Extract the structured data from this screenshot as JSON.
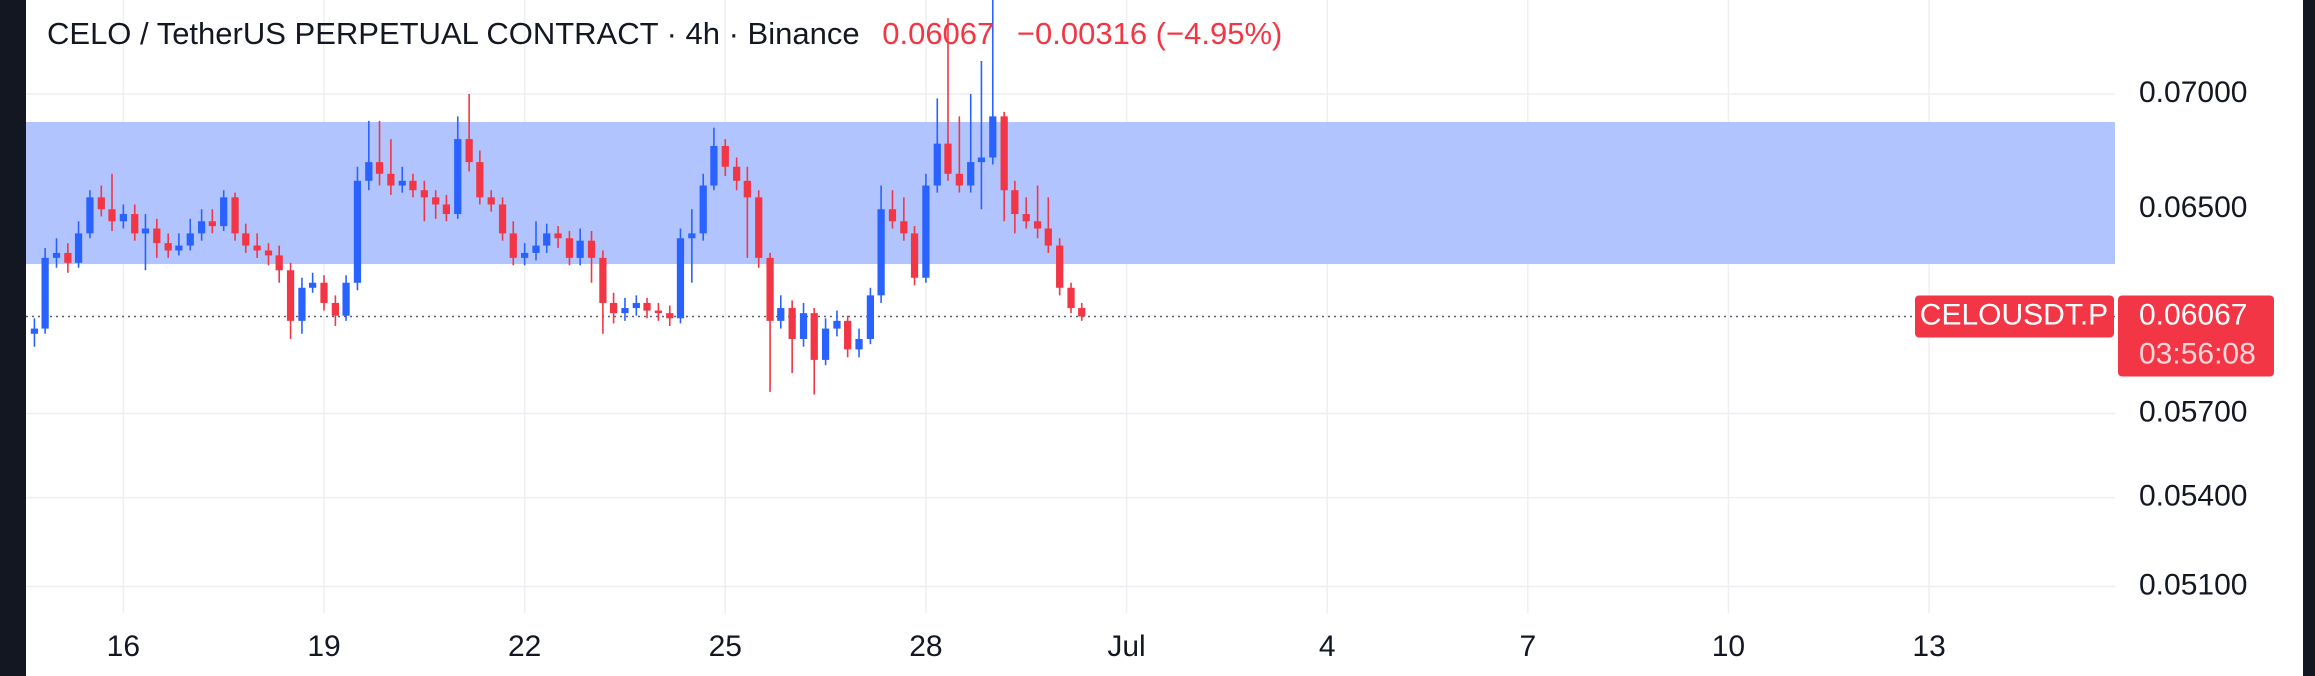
{
  "chart_data": {
    "type": "candlestick",
    "title": "CELO / TetherUS PERPETUAL CONTRACT · 4h · Binance",
    "price": 0.06067,
    "change": "−0.00316 (−4.95%)",
    "symbol": "CELOUSDT.P",
    "countdown": "03:56:08",
    "log_scale": true,
    "grid": true,
    "up_color": "#2962ff",
    "down_color": "#f23645",
    "zone": [
      0.06275,
      0.06875
    ],
    "zone_color": "#b2c4fd",
    "ylim": [
      0.05014,
      0.07436
    ],
    "yticks": [
      {
        "value": 0.07,
        "label": "0.07000"
      },
      {
        "value": 0.065,
        "label": "0.06500"
      },
      {
        "value": 0.057,
        "label": "0.05700"
      },
      {
        "value": 0.054,
        "label": "0.05400"
      },
      {
        "value": 0.051,
        "label": "0.05100"
      }
    ],
    "xlim": [
      14.544,
      45.78
    ],
    "xticks": [
      16,
      19,
      22,
      25,
      28,
      {
        "value": 31,
        "label": "Jul"
      },
      {
        "value": 34,
        "label": "4"
      },
      {
        "value": 37,
        "label": "7"
      },
      {
        "value": 40,
        "label": "10"
      },
      {
        "value": 43,
        "label": "13"
      }
    ],
    "x": [
      14.67,
      14.83,
      15,
      15.17,
      15.33,
      15.5,
      15.67,
      15.83,
      16,
      16.17,
      16.33,
      16.5,
      16.67,
      16.83,
      17,
      17.17,
      17.33,
      17.5,
      17.67,
      17.83,
      18,
      18.17,
      18.33,
      18.5,
      18.67,
      18.83,
      19,
      19.17,
      19.33,
      19.5,
      19.67,
      19.83,
      20,
      20.17,
      20.33,
      20.5,
      20.67,
      20.83,
      21,
      21.17,
      21.33,
      21.5,
      21.67,
      21.83,
      22,
      22.17,
      22.33,
      22.5,
      22.67,
      22.83,
      23,
      23.17,
      23.33,
      23.5,
      23.67,
      23.83,
      24,
      24.17,
      24.33,
      24.5,
      24.67,
      24.83,
      25,
      25.17,
      25.33,
      25.5,
      25.67,
      25.83,
      26,
      26.17,
      26.33,
      26.5,
      26.67,
      26.83,
      27,
      27.17,
      27.33,
      27.5,
      27.67,
      27.83,
      28,
      28.17,
      28.33,
      28.5,
      28.67,
      28.83,
      29,
      29.17,
      29.33,
      29.5,
      29.67,
      29.83,
      30,
      30.17,
      30.33
    ],
    "open": [
      0.06,
      0.0602,
      0.063,
      0.0632,
      0.0628,
      0.064,
      0.0655,
      0.065,
      0.0645,
      0.0648,
      0.064,
      0.0642,
      0.0636,
      0.0633,
      0.0635,
      0.064,
      0.0645,
      0.0643,
      0.0655,
      0.064,
      0.0635,
      0.0633,
      0.0631,
      0.0625,
      0.0605,
      0.0618,
      0.062,
      0.0612,
      0.0607,
      0.062,
      0.0662,
      0.067,
      0.0665,
      0.066,
      0.0662,
      0.0658,
      0.0655,
      0.0652,
      0.0648,
      0.068,
      0.067,
      0.0655,
      0.0652,
      0.064,
      0.063,
      0.0632,
      0.0635,
      0.064,
      0.0638,
      0.063,
      0.0637,
      0.063,
      0.0612,
      0.0608,
      0.061,
      0.0612,
      0.0609,
      0.0608,
      0.0606,
      0.0638,
      0.064,
      0.066,
      0.0677,
      0.0668,
      0.0662,
      0.0655,
      0.063,
      0.0605,
      0.061,
      0.0598,
      0.0608,
      0.059,
      0.0602,
      0.0605,
      0.0594,
      0.0598,
      0.0615,
      0.065,
      0.0645,
      0.064,
      0.0622,
      0.066,
      0.0678,
      0.0665,
      0.066,
      0.067,
      0.0672,
      0.069,
      0.0658,
      0.0648,
      0.0645,
      0.0642,
      0.0635,
      0.0618,
      0.061
    ],
    "high": [
      0.0606,
      0.0634,
      0.0638,
      0.0636,
      0.0645,
      0.0658,
      0.066,
      0.0665,
      0.0652,
      0.0652,
      0.0648,
      0.0646,
      0.064,
      0.064,
      0.0646,
      0.065,
      0.065,
      0.0658,
      0.0657,
      0.0644,
      0.064,
      0.0636,
      0.0635,
      0.0628,
      0.0622,
      0.0624,
      0.0623,
      0.0615,
      0.0623,
      0.0668,
      0.0688,
      0.0688,
      0.068,
      0.0668,
      0.0665,
      0.0662,
      0.0658,
      0.0656,
      0.069,
      0.07,
      0.0675,
      0.0658,
      0.0655,
      0.0645,
      0.0636,
      0.0645,
      0.0644,
      0.0643,
      0.0641,
      0.0642,
      0.0641,
      0.0633,
      0.0616,
      0.0614,
      0.0615,
      0.0614,
      0.0612,
      0.0611,
      0.0642,
      0.065,
      0.0665,
      0.0685,
      0.068,
      0.0672,
      0.0668,
      0.0658,
      0.0632,
      0.0615,
      0.0613,
      0.0612,
      0.061,
      0.0606,
      0.0609,
      0.0607,
      0.0602,
      0.0618,
      0.066,
      0.0658,
      0.0655,
      0.0643,
      0.0665,
      0.0698,
      0.0735,
      0.069,
      0.07,
      0.0715,
      0.0745,
      0.0692,
      0.0662,
      0.0655,
      0.066,
      0.0655,
      0.0638,
      0.062,
      0.0612
    ],
    "low": [
      0.0595,
      0.06,
      0.0626,
      0.0624,
      0.0626,
      0.0638,
      0.0647,
      0.0641,
      0.0642,
      0.0637,
      0.0625,
      0.063,
      0.063,
      0.0631,
      0.0633,
      0.0637,
      0.064,
      0.0641,
      0.0637,
      0.0632,
      0.063,
      0.0627,
      0.062,
      0.0598,
      0.06,
      0.0616,
      0.0609,
      0.0603,
      0.0605,
      0.0617,
      0.0658,
      0.066,
      0.0656,
      0.0657,
      0.0655,
      0.0645,
      0.0646,
      0.0645,
      0.0646,
      0.0666,
      0.0652,
      0.0649,
      0.0637,
      0.0627,
      0.0627,
      0.0629,
      0.0632,
      0.0634,
      0.0627,
      0.0627,
      0.062,
      0.06,
      0.0604,
      0.0605,
      0.0607,
      0.0606,
      0.0605,
      0.0603,
      0.0604,
      0.062,
      0.0637,
      0.0658,
      0.0664,
      0.0658,
      0.063,
      0.0626,
      0.0578,
      0.0602,
      0.0585,
      0.0595,
      0.0577,
      0.0588,
      0.0599,
      0.0591,
      0.0591,
      0.0596,
      0.0612,
      0.0642,
      0.0637,
      0.0619,
      0.062,
      0.0657,
      0.0662,
      0.0657,
      0.0657,
      0.065,
      0.0669,
      0.0645,
      0.064,
      0.0642,
      0.0638,
      0.0632,
      0.0615,
      0.0608,
      0.0605
    ],
    "close": [
      0.0602,
      0.063,
      0.0632,
      0.0628,
      0.064,
      0.0655,
      0.065,
      0.0645,
      0.0648,
      0.064,
      0.0642,
      0.0636,
      0.0633,
      0.0635,
      0.064,
      0.0645,
      0.0643,
      0.0655,
      0.064,
      0.0635,
      0.0633,
      0.0631,
      0.0625,
      0.0605,
      0.0618,
      0.062,
      0.0612,
      0.0607,
      0.062,
      0.0662,
      0.067,
      0.0665,
      0.066,
      0.0662,
      0.0658,
      0.0655,
      0.0652,
      0.0648,
      0.068,
      0.067,
      0.0655,
      0.0652,
      0.064,
      0.063,
      0.0632,
      0.0635,
      0.064,
      0.0638,
      0.063,
      0.0637,
      0.063,
      0.0612,
      0.0608,
      0.061,
      0.0612,
      0.0609,
      0.0608,
      0.0606,
      0.0638,
      0.064,
      0.066,
      0.0677,
      0.0668,
      0.0662,
      0.0655,
      0.063,
      0.0605,
      0.061,
      0.0598,
      0.0608,
      0.059,
      0.0602,
      0.0605,
      0.0594,
      0.0598,
      0.0615,
      0.065,
      0.0645,
      0.064,
      0.0622,
      0.066,
      0.0678,
      0.0665,
      0.066,
      0.067,
      0.0672,
      0.069,
      0.0658,
      0.0648,
      0.0645,
      0.0642,
      0.0635,
      0.0618,
      0.061,
      0.06067
    ]
  }
}
